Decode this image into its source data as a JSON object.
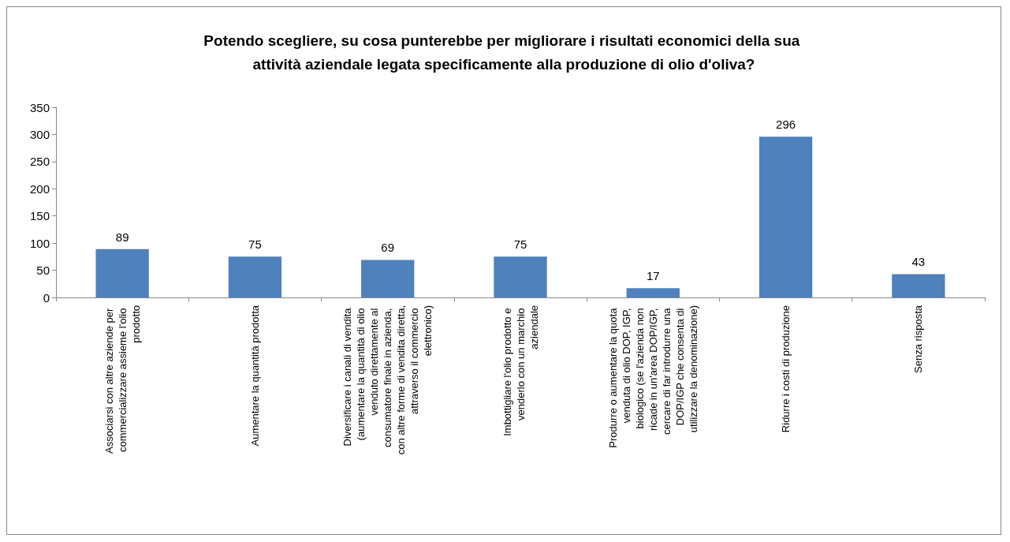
{
  "chart_data": {
    "type": "bar",
    "title": "Potendo scegliere, su cosa punterebbe per migliorare i risultati economici della sua attività aziendale legata specificamente alla produzione di olio d'oliva?",
    "categories": [
      "Associarsi con altre aziende per commercializzare assieme l'olio prodotto",
      "Aumentare la quantità prodotta",
      "Diversificare i canali di vendita (aumentare la quantità di olio venduto direttamente al consumatore finale in azienda, con altre forme di vendita diretta, attraverso il commercio elettronico)",
      "Imbottigliare l'olio prodotto e venderlo con un marchio aziendale",
      "Produrre o aumentare la quota venduta di olio DOP, IGP, biologico (se l'azienda non ricade in un'area DOP/IGP, cercare di far introdurre una DOP/IGP che consenta di utilizzare la denominazione)",
      "Ridurre i costi di produzione",
      "Senza risposta"
    ],
    "values": [
      89,
      75,
      69,
      75,
      17,
      296,
      43
    ],
    "color": "#4f81bd",
    "ylim": [
      0,
      350
    ],
    "yticks": [
      0,
      50,
      100,
      150,
      200,
      250,
      300,
      350
    ],
    "data_labels": true,
    "grid": false
  }
}
